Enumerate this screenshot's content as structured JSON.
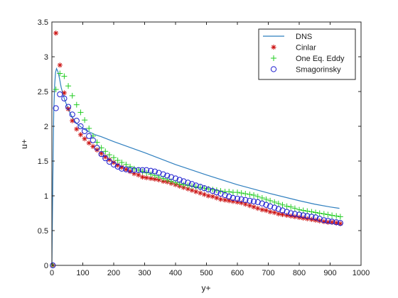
{
  "chart_data": {
    "type": "line",
    "title": "",
    "xlabel": "y+",
    "ylabel": "u+",
    "xlim": [
      0,
      1000
    ],
    "ylim": [
      0,
      3.5
    ],
    "xticks": [
      0,
      100,
      200,
      300,
      400,
      500,
      600,
      700,
      800,
      900,
      1000
    ],
    "yticks": [
      0,
      0.5,
      1,
      1.5,
      2,
      2.5,
      3,
      3.5
    ],
    "xtick_labels": [
      "0",
      "100",
      "200",
      "300",
      "400",
      "500",
      "600",
      "700",
      "800",
      "900",
      "1000"
    ],
    "ytick_labels": [
      "0",
      "0.5",
      "1",
      "1.5",
      "2",
      "2.5",
      "3",
      "3.5"
    ],
    "grid": false,
    "legend_position": "top-right",
    "series": [
      {
        "name": "DNS",
        "style": "line",
        "color": "#2f7fbf",
        "x": [
          0,
          3,
          6,
          9,
          12,
          15,
          20,
          25,
          30,
          40,
          50,
          60,
          70,
          80,
          100,
          120,
          140,
          160,
          200,
          300,
          400,
          500,
          600,
          700,
          800,
          850,
          900,
          930
        ],
        "y": [
          0,
          1.2,
          2.2,
          2.6,
          2.78,
          2.83,
          2.78,
          2.68,
          2.56,
          2.4,
          2.28,
          2.18,
          2.1,
          2.04,
          1.97,
          1.92,
          1.88,
          1.85,
          1.78,
          1.62,
          1.45,
          1.3,
          1.16,
          1.04,
          0.93,
          0.88,
          0.84,
          0.82
        ]
      },
      {
        "name": "Cinlar",
        "style": "asterisk",
        "color": "#cc1414",
        "x": [
          3,
          13,
          26,
          40,
          53,
          66,
          80,
          93,
          106,
          120,
          133,
          146,
          160,
          173,
          186,
          200,
          213,
          226,
          240,
          253,
          266,
          280,
          293,
          306,
          320,
          333,
          346,
          360,
          373,
          386,
          400,
          413,
          426,
          440,
          453,
          466,
          480,
          493,
          506,
          520,
          533,
          546,
          560,
          573,
          586,
          600,
          613,
          626,
          640,
          653,
          666,
          680,
          693,
          706,
          720,
          733,
          746,
          760,
          773,
          786,
          800,
          813,
          826,
          840,
          853,
          866,
          880,
          893,
          906,
          920,
          933
        ],
        "y": [
          0,
          3.34,
          2.88,
          2.48,
          2.25,
          2.08,
          1.96,
          1.88,
          1.82,
          1.76,
          1.71,
          1.66,
          1.61,
          1.56,
          1.52,
          1.48,
          1.44,
          1.41,
          1.38,
          1.35,
          1.32,
          1.3,
          1.27,
          1.26,
          1.25,
          1.24,
          1.23,
          1.21,
          1.2,
          1.18,
          1.16,
          1.14,
          1.12,
          1.1,
          1.08,
          1.06,
          1.04,
          1.02,
          1.0,
          0.99,
          0.97,
          0.95,
          0.94,
          0.93,
          0.92,
          0.91,
          0.9,
          0.88,
          0.86,
          0.84,
          0.82,
          0.8,
          0.79,
          0.77,
          0.76,
          0.74,
          0.73,
          0.72,
          0.71,
          0.7,
          0.69,
          0.68,
          0.67,
          0.66,
          0.65,
          0.64,
          0.63,
          0.62,
          0.62,
          0.61,
          0.6
        ]
      },
      {
        "name": "One Eq. Eddy",
        "style": "plus",
        "color": "#22cc22",
        "x": [
          3,
          13,
          26,
          40,
          53,
          66,
          80,
          93,
          106,
          120,
          133,
          146,
          160,
          173,
          186,
          200,
          213,
          226,
          240,
          253,
          266,
          280,
          293,
          306,
          320,
          333,
          346,
          360,
          373,
          386,
          400,
          413,
          426,
          440,
          453,
          466,
          480,
          493,
          506,
          520,
          533,
          546,
          560,
          573,
          586,
          600,
          613,
          626,
          640,
          653,
          666,
          680,
          693,
          706,
          720,
          733,
          746,
          760,
          773,
          786,
          800,
          813,
          826,
          840,
          853,
          866,
          880,
          893,
          906,
          920,
          933
        ],
        "y": [
          0,
          2.53,
          2.76,
          2.72,
          2.58,
          2.44,
          2.31,
          2.2,
          2.09,
          1.97,
          1.86,
          1.77,
          1.69,
          1.64,
          1.59,
          1.55,
          1.51,
          1.48,
          1.45,
          1.42,
          1.39,
          1.37,
          1.35,
          1.33,
          1.31,
          1.29,
          1.27,
          1.25,
          1.23,
          1.21,
          1.19,
          1.17,
          1.16,
          1.15,
          1.14,
          1.13,
          1.12,
          1.11,
          1.1,
          1.09,
          1.08,
          1.07,
          1.06,
          1.06,
          1.05,
          1.05,
          1.04,
          1.03,
          1.02,
          1.01,
          0.99,
          0.97,
          0.95,
          0.93,
          0.91,
          0.89,
          0.87,
          0.85,
          0.84,
          0.82,
          0.8,
          0.79,
          0.78,
          0.77,
          0.76,
          0.75,
          0.74,
          0.73,
          0.72,
          0.71,
          0.7
        ]
      },
      {
        "name": "Smagorinsky",
        "style": "circle",
        "color": "#1c1ccf",
        "x": [
          3,
          13,
          26,
          40,
          53,
          66,
          80,
          93,
          106,
          120,
          133,
          146,
          160,
          173,
          186,
          200,
          213,
          226,
          240,
          253,
          266,
          280,
          293,
          306,
          320,
          333,
          346,
          360,
          373,
          386,
          400,
          413,
          426,
          440,
          453,
          466,
          480,
          493,
          506,
          520,
          533,
          546,
          560,
          573,
          586,
          600,
          613,
          626,
          640,
          653,
          666,
          680,
          693,
          706,
          720,
          733,
          746,
          760,
          773,
          786,
          800,
          813,
          826,
          840,
          853,
          866,
          880,
          893,
          906,
          920,
          933
        ],
        "y": [
          0,
          2.26,
          2.46,
          2.4,
          2.28,
          2.17,
          2.08,
          2.0,
          1.93,
          1.86,
          1.8,
          1.69,
          1.6,
          1.54,
          1.49,
          1.45,
          1.42,
          1.39,
          1.38,
          1.37,
          1.37,
          1.37,
          1.37,
          1.37,
          1.36,
          1.35,
          1.33,
          1.31,
          1.29,
          1.27,
          1.25,
          1.23,
          1.21,
          1.19,
          1.17,
          1.15,
          1.13,
          1.11,
          1.09,
          1.07,
          1.05,
          1.03,
          1.01,
          0.99,
          0.97,
          0.96,
          0.95,
          0.94,
          0.93,
          0.92,
          0.91,
          0.89,
          0.87,
          0.85,
          0.83,
          0.81,
          0.79,
          0.77,
          0.75,
          0.74,
          0.73,
          0.72,
          0.71,
          0.7,
          0.69,
          0.67,
          0.65,
          0.64,
          0.63,
          0.62,
          0.61
        ]
      }
    ]
  }
}
